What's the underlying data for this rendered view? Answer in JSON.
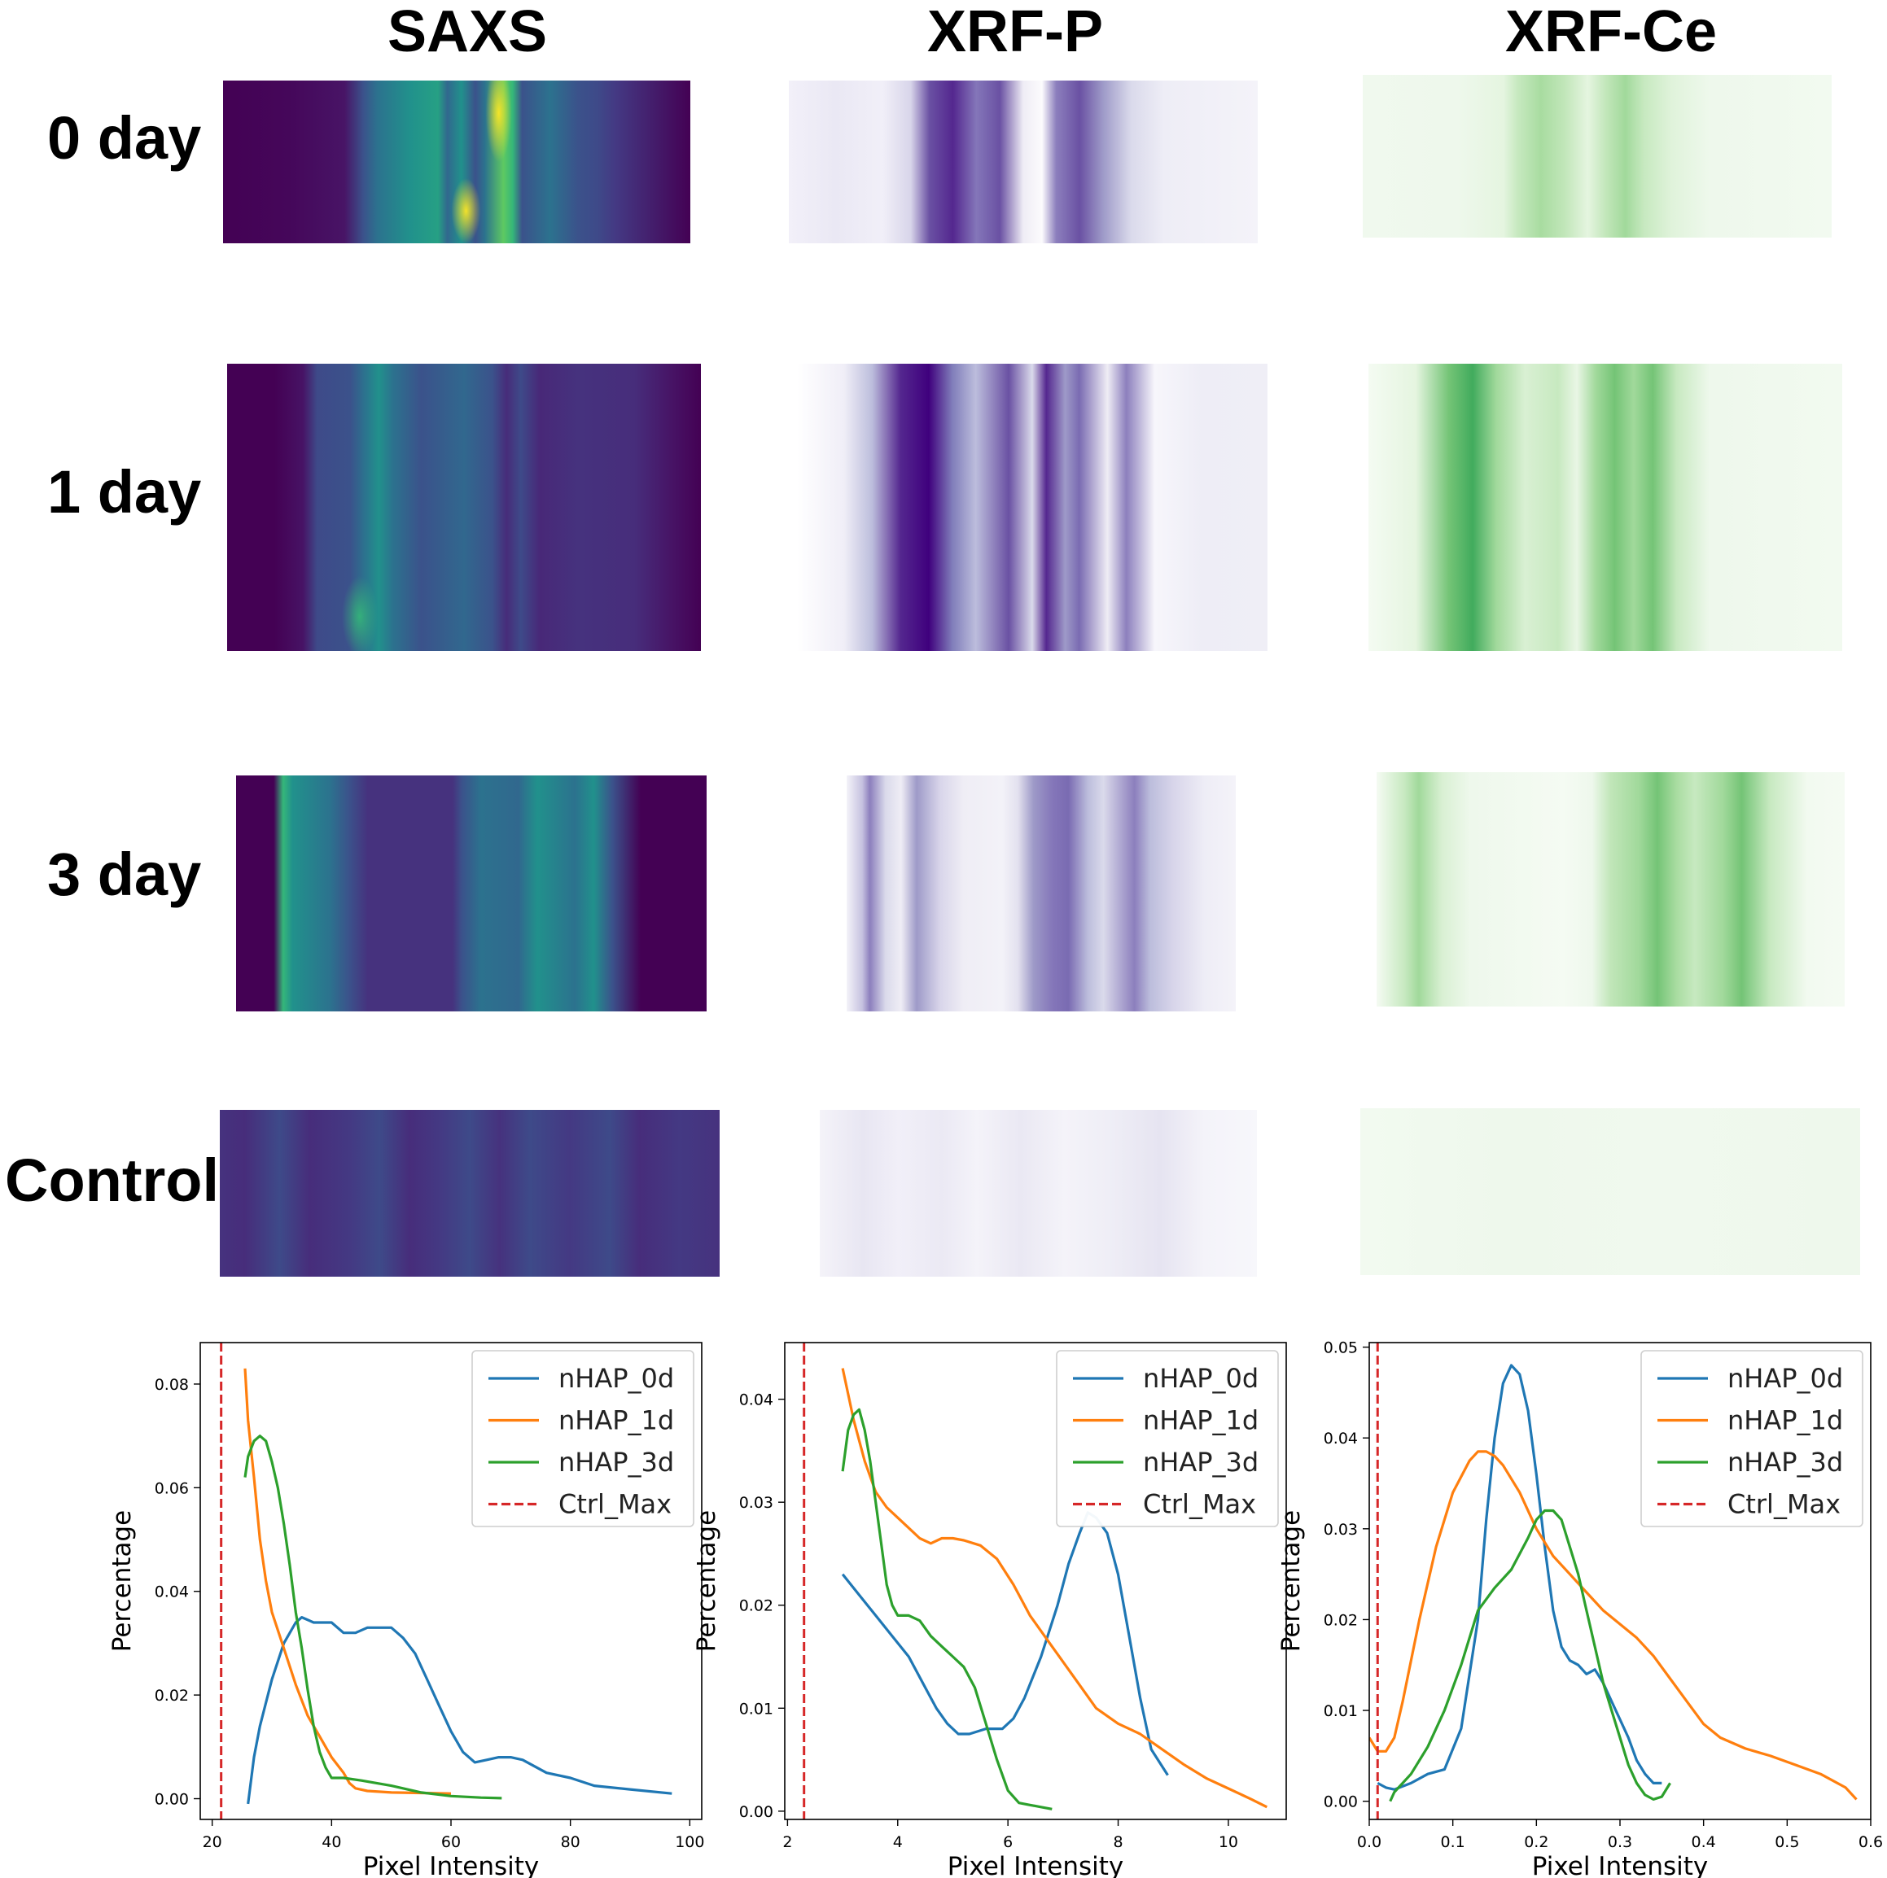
{
  "column_titles": [
    "SAXS",
    "XRF-P",
    "XRF-Ce"
  ],
  "row_labels": [
    "0 day",
    "1 day",
    "3 day",
    "Control"
  ],
  "colors": {
    "saxs_base": "#440154",
    "saxs_mid": "#31688e",
    "saxs_high": "#35b779",
    "saxs_peak": "#fde725",
    "purple": "#3f007d",
    "green": "#1a9641",
    "blue_line": "#1f77b4",
    "orange_line": "#ff7f0e",
    "green_line": "#2ca02c",
    "ctrl_line": "#d62728"
  },
  "chart_data": [
    {
      "type": "line",
      "panel": "SAXS",
      "xlabel": "Pixel Intensity",
      "ylabel": "Percentage",
      "xlim": [
        18,
        102
      ],
      "ylim": [
        -0.004,
        0.088
      ],
      "xticks": [
        20,
        40,
        60,
        80,
        100
      ],
      "xtick_labels": [
        "20",
        "40",
        "60",
        "80",
        "100"
      ],
      "yticks": [
        0,
        0.02,
        0.04,
        0.06,
        0.08
      ],
      "ytick_labels": [
        "0.00",
        "0.02",
        "0.04",
        "0.06",
        "0.08"
      ],
      "legend": [
        "nHAP_0d",
        "nHAP_1d",
        "nHAP_3d",
        "Ctrl_Max"
      ],
      "legend_position": "top-right",
      "ctrl_max": 21.5,
      "series": [
        {
          "name": "nHAP_0d",
          "x": [
            26,
            27,
            28,
            30,
            32,
            34,
            35,
            37,
            38,
            40,
            42,
            44,
            46,
            48,
            50,
            52,
            54,
            56,
            58,
            60,
            62,
            64,
            66,
            68,
            70,
            72,
            76,
            80,
            84,
            90,
            97
          ],
          "y": [
            -0.001,
            0.008,
            0.014,
            0.023,
            0.03,
            0.034,
            0.035,
            0.034,
            0.034,
            0.034,
            0.032,
            0.032,
            0.033,
            0.033,
            0.033,
            0.031,
            0.028,
            0.023,
            0.018,
            0.013,
            0.009,
            0.007,
            0.0075,
            0.008,
            0.008,
            0.0075,
            0.005,
            0.004,
            0.0025,
            0.0018,
            0.001
          ]
        },
        {
          "name": "nHAP_1d",
          "x": [
            25.5,
            26,
            27,
            28,
            29,
            30,
            32,
            34,
            36,
            38,
            40,
            42,
            43,
            44,
            46,
            50,
            55,
            60
          ],
          "y": [
            0.083,
            0.073,
            0.062,
            0.05,
            0.042,
            0.036,
            0.029,
            0.022,
            0.016,
            0.012,
            0.008,
            0.005,
            0.003,
            0.002,
            0.0015,
            0.0012,
            0.0011,
            0.001
          ]
        },
        {
          "name": "nHAP_3d",
          "x": [
            25.5,
            26,
            27,
            28,
            29,
            30,
            31,
            32,
            33,
            34,
            35,
            36,
            37,
            38,
            39,
            40,
            42,
            45,
            50,
            55,
            60,
            65,
            68.5
          ],
          "y": [
            0.062,
            0.066,
            0.069,
            0.07,
            0.069,
            0.065,
            0.06,
            0.053,
            0.045,
            0.036,
            0.029,
            0.021,
            0.014,
            0.009,
            0.006,
            0.004,
            0.004,
            0.0035,
            0.0025,
            0.0012,
            0.0005,
            0.0002,
            0.0001
          ]
        }
      ]
    },
    {
      "type": "line",
      "panel": "XRF-P",
      "xlabel": "Pixel Intensity",
      "ylabel": "Percentage",
      "xlim": [
        1.95,
        11.05
      ],
      "ylim": [
        -0.0008,
        0.0455
      ],
      "xticks": [
        2,
        4,
        6,
        8,
        10
      ],
      "xtick_labels": [
        "2",
        "4",
        "6",
        "8",
        "10"
      ],
      "yticks": [
        0,
        0.01,
        0.02,
        0.03,
        0.04
      ],
      "ytick_labels": [
        "0.00",
        "0.01",
        "0.02",
        "0.03",
        "0.04"
      ],
      "legend": [
        "nHAP_0d",
        "nHAP_1d",
        "nHAP_3d",
        "Ctrl_Max"
      ],
      "legend_position": "top-right",
      "ctrl_max": 2.3,
      "series": [
        {
          "name": "nHAP_0d",
          "x": [
            3.0,
            3.3,
            3.6,
            3.9,
            4.2,
            4.5,
            4.7,
            4.9,
            5.1,
            5.3,
            5.6,
            5.9,
            6.1,
            6.3,
            6.6,
            6.9,
            7.1,
            7.3,
            7.45,
            7.6,
            7.8,
            8.0,
            8.2,
            8.4,
            8.6,
            8.9
          ],
          "y": [
            0.023,
            0.021,
            0.019,
            0.017,
            0.015,
            0.012,
            0.01,
            0.0085,
            0.0075,
            0.0075,
            0.008,
            0.008,
            0.009,
            0.011,
            0.015,
            0.02,
            0.024,
            0.027,
            0.029,
            0.0285,
            0.027,
            0.023,
            0.017,
            0.011,
            0.006,
            0.0035
          ]
        },
        {
          "name": "nHAP_1d",
          "x": [
            3.0,
            3.2,
            3.4,
            3.6,
            3.8,
            4.0,
            4.2,
            4.4,
            4.6,
            4.8,
            5.0,
            5.2,
            5.5,
            5.8,
            6.1,
            6.4,
            6.8,
            7.2,
            7.6,
            8.0,
            8.4,
            8.8,
            9.2,
            9.6,
            10.0,
            10.4,
            10.7
          ],
          "y": [
            0.043,
            0.038,
            0.034,
            0.031,
            0.0295,
            0.0285,
            0.0275,
            0.0265,
            0.026,
            0.0265,
            0.0265,
            0.0263,
            0.0258,
            0.0245,
            0.022,
            0.019,
            0.016,
            0.013,
            0.01,
            0.0085,
            0.0075,
            0.006,
            0.0045,
            0.0032,
            0.0022,
            0.0012,
            0.0004
          ]
        },
        {
          "name": "nHAP_3d",
          "x": [
            3.0,
            3.1,
            3.2,
            3.3,
            3.4,
            3.5,
            3.6,
            3.7,
            3.8,
            3.9,
            4.0,
            4.2,
            4.4,
            4.6,
            4.8,
            5.0,
            5.2,
            5.4,
            5.6,
            5.8,
            6.0,
            6.2,
            6.4,
            6.6,
            6.8
          ],
          "y": [
            0.033,
            0.037,
            0.0385,
            0.039,
            0.037,
            0.034,
            0.03,
            0.026,
            0.022,
            0.02,
            0.019,
            0.019,
            0.0185,
            0.017,
            0.016,
            0.015,
            0.014,
            0.012,
            0.0085,
            0.005,
            0.002,
            0.0008,
            0.0006,
            0.0004,
            0.0002
          ]
        }
      ]
    },
    {
      "type": "line",
      "panel": "XRF-Ce",
      "xlabel": "Pixel Intensity",
      "ylabel": "Percentage",
      "xlim": [
        0.0,
        0.6
      ],
      "ylim": [
        -0.002,
        0.0505
      ],
      "xticks": [
        0,
        0.1,
        0.2,
        0.3,
        0.4,
        0.5,
        0.6
      ],
      "xtick_labels": [
        "0.0",
        "0.1",
        "0.2",
        "0.3",
        "0.4",
        "0.5",
        "0.6"
      ],
      "yticks": [
        0,
        0.01,
        0.02,
        0.03,
        0.04,
        0.05
      ],
      "ytick_labels": [
        "0.00",
        "0.01",
        "0.02",
        "0.03",
        "0.04",
        "0.05"
      ],
      "legend": [
        "nHAP_0d",
        "nHAP_1d",
        "nHAP_3d",
        "Ctrl_Max"
      ],
      "legend_position": "top-right",
      "ctrl_max": 0.01,
      "series": [
        {
          "name": "nHAP_0d",
          "x": [
            0.01,
            0.02,
            0.03,
            0.05,
            0.07,
            0.09,
            0.11,
            0.13,
            0.14,
            0.15,
            0.16,
            0.17,
            0.18,
            0.19,
            0.2,
            0.21,
            0.22,
            0.23,
            0.24,
            0.25,
            0.26,
            0.27,
            0.28,
            0.29,
            0.3,
            0.31,
            0.32,
            0.33,
            0.34,
            0.35
          ],
          "y": [
            0.002,
            0.0015,
            0.0013,
            0.002,
            0.003,
            0.0035,
            0.008,
            0.02,
            0.031,
            0.04,
            0.046,
            0.048,
            0.047,
            0.043,
            0.036,
            0.028,
            0.021,
            0.017,
            0.0155,
            0.015,
            0.014,
            0.0145,
            0.013,
            0.011,
            0.009,
            0.007,
            0.0045,
            0.003,
            0.002,
            0.002
          ]
        },
        {
          "name": "nHAP_1d",
          "x": [
            0.0,
            0.01,
            0.02,
            0.03,
            0.04,
            0.06,
            0.08,
            0.1,
            0.12,
            0.13,
            0.14,
            0.15,
            0.16,
            0.18,
            0.2,
            0.22,
            0.24,
            0.26,
            0.28,
            0.3,
            0.32,
            0.34,
            0.36,
            0.38,
            0.4,
            0.42,
            0.45,
            0.48,
            0.51,
            0.54,
            0.57,
            0.583
          ],
          "y": [
            0.007,
            0.0055,
            0.0055,
            0.007,
            0.011,
            0.02,
            0.028,
            0.034,
            0.0375,
            0.0385,
            0.0385,
            0.038,
            0.037,
            0.034,
            0.03,
            0.027,
            0.025,
            0.023,
            0.021,
            0.0195,
            0.018,
            0.016,
            0.0135,
            0.011,
            0.0085,
            0.007,
            0.0058,
            0.005,
            0.004,
            0.003,
            0.0015,
            0.0002
          ]
        },
        {
          "name": "nHAP_3d",
          "x": [
            0.025,
            0.03,
            0.05,
            0.07,
            0.09,
            0.11,
            0.13,
            0.15,
            0.17,
            0.19,
            0.2,
            0.21,
            0.22,
            0.23,
            0.24,
            0.25,
            0.26,
            0.27,
            0.28,
            0.29,
            0.3,
            0.31,
            0.32,
            0.33,
            0.34,
            0.35,
            0.36
          ],
          "y": [
            0.0,
            0.001,
            0.003,
            0.006,
            0.01,
            0.015,
            0.021,
            0.0235,
            0.0255,
            0.029,
            0.031,
            0.032,
            0.032,
            0.031,
            0.028,
            0.025,
            0.021,
            0.017,
            0.013,
            0.01,
            0.007,
            0.004,
            0.002,
            0.0007,
            0.0002,
            0.0005,
            0.002
          ]
        }
      ]
    }
  ]
}
